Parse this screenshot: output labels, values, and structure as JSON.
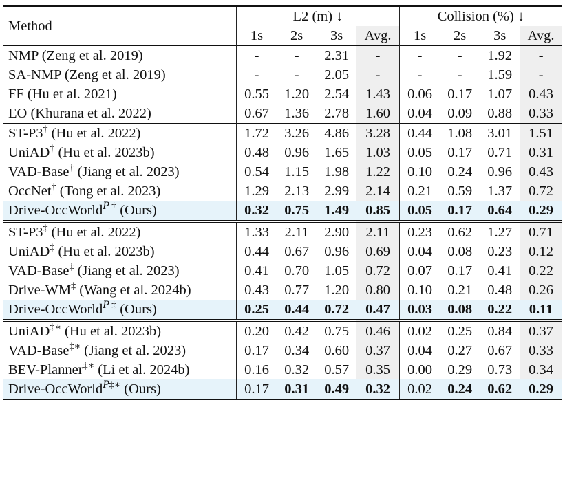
{
  "header": {
    "method": "Method",
    "l2": "L2 (m) ↓",
    "collision": "Collision (%) ↓",
    "cols": [
      "1s",
      "2s",
      "3s",
      "Avg.",
      "1s",
      "2s",
      "3s",
      "Avg."
    ]
  },
  "groups": [
    {
      "rows": [
        {
          "name": "NMP (Zeng et al. 2019)",
          "sup": "",
          "vals": [
            "-",
            "-",
            "2.31",
            "-",
            "-",
            "-",
            "1.92",
            "-"
          ]
        },
        {
          "name": "SA-NMP (Zeng et al. 2019)",
          "sup": "",
          "vals": [
            "-",
            "-",
            "2.05",
            "-",
            "-",
            "-",
            "1.59",
            "-"
          ]
        },
        {
          "name": "FF (Hu et al. 2021)",
          "sup": "",
          "vals": [
            "0.55",
            "1.20",
            "2.54",
            "1.43",
            "0.06",
            "0.17",
            "1.07",
            "0.43"
          ]
        },
        {
          "name": "EO (Khurana et al. 2022)",
          "sup": "",
          "vals": [
            "0.67",
            "1.36",
            "2.78",
            "1.60",
            "0.04",
            "0.09",
            "0.88",
            "0.33"
          ]
        }
      ]
    },
    {
      "rows": [
        {
          "name": "ST-P3",
          "sup": "†",
          "cite": "(Hu et al. 2022)",
          "vals": [
            "1.72",
            "3.26",
            "4.86",
            "3.28",
            "0.44",
            "1.08",
            "3.01",
            "1.51"
          ]
        },
        {
          "name": "UniAD",
          "sup": "†",
          "cite": "(Hu et al. 2023b)",
          "vals": [
            "0.48",
            "0.96",
            "1.65",
            "1.03",
            "0.05",
            "0.17",
            "0.71",
            "0.31"
          ]
        },
        {
          "name": "VAD-Base",
          "sup": "†",
          "cite": "(Jiang et al. 2023)",
          "vals": [
            "0.54",
            "1.15",
            "1.98",
            "1.22",
            "0.10",
            "0.24",
            "0.96",
            "0.43"
          ]
        },
        {
          "name": "OccNet",
          "sup": "†",
          "cite": "(Tong et al. 2023)",
          "vals": [
            "1.29",
            "2.13",
            "2.99",
            "2.14",
            "0.21",
            "0.59",
            "1.37",
            "0.72"
          ]
        },
        {
          "name": "Drive-OccWorld",
          "supP": "P",
          "sup": " †",
          "cite": "(Ours)",
          "ours": true,
          "bold": [
            0,
            1,
            2,
            3,
            4,
            5,
            6,
            7
          ],
          "vals": [
            "0.32",
            "0.75",
            "1.49",
            "0.85",
            "0.05",
            "0.17",
            "0.64",
            "0.29"
          ]
        }
      ]
    },
    {
      "rows": [
        {
          "name": "ST-P3",
          "sup": "‡",
          "cite": "(Hu et al. 2022)",
          "vals": [
            "1.33",
            "2.11",
            "2.90",
            "2.11",
            "0.23",
            "0.62",
            "1.27",
            "0.71"
          ]
        },
        {
          "name": "UniAD",
          "sup": "‡",
          "cite": "(Hu et al. 2023b)",
          "vals": [
            "0.44",
            "0.67",
            "0.96",
            "0.69",
            "0.04",
            "0.08",
            "0.23",
            "0.12"
          ]
        },
        {
          "name": "VAD-Base",
          "sup": "‡",
          "cite": "(Jiang et al. 2023)",
          "vals": [
            "0.41",
            "0.70",
            "1.05",
            "0.72",
            "0.07",
            "0.17",
            "0.41",
            "0.22"
          ]
        },
        {
          "name": "Drive-WM",
          "sup": "‡",
          "cite": "(Wang et al. 2024b)",
          "vals": [
            "0.43",
            "0.77",
            "1.20",
            "0.80",
            "0.10",
            "0.21",
            "0.48",
            "0.26"
          ]
        },
        {
          "name": "Drive-OccWorld",
          "supP": "P",
          "sup": " ‡",
          "cite": "(Ours)",
          "ours": true,
          "bold": [
            0,
            1,
            2,
            3,
            4,
            5,
            6,
            7
          ],
          "vals": [
            "0.25",
            "0.44",
            "0.72",
            "0.47",
            "0.03",
            "0.08",
            "0.22",
            "0.11"
          ]
        }
      ]
    },
    {
      "rows": [
        {
          "name": "UniAD",
          "sup": "‡∗",
          "cite": "(Hu et al. 2023b)",
          "vals": [
            "0.20",
            "0.42",
            "0.75",
            "0.46",
            "0.02",
            "0.25",
            "0.84",
            "0.37"
          ]
        },
        {
          "name": "VAD-Base",
          "sup": "‡∗",
          "cite": "(Jiang et al. 2023)",
          "vals": [
            "0.17",
            "0.34",
            "0.60",
            "0.37",
            "0.04",
            "0.27",
            "0.67",
            "0.33"
          ]
        },
        {
          "name": "BEV-Planner",
          "sup": "‡∗",
          "cite": "(Li et al. 2024b)",
          "vals": [
            "0.16",
            "0.32",
            "0.57",
            "0.35",
            "0.00",
            "0.29",
            "0.73",
            "0.34"
          ]
        },
        {
          "name": "Drive-OccWorld",
          "supP": "P",
          "sup": "‡∗",
          "cite": "(Ours)",
          "ours": true,
          "bold": [
            1,
            2,
            3,
            5,
            6,
            7
          ],
          "vals": [
            "0.17",
            "0.31",
            "0.49",
            "0.32",
            "0.02",
            "0.24",
            "0.62",
            "0.29"
          ]
        }
      ]
    }
  ]
}
